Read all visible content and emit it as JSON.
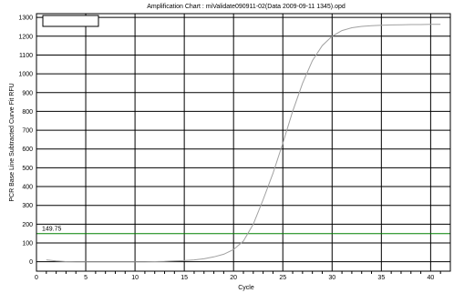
{
  "chart_data": {
    "type": "line",
    "title": "Amplification Chart : miValidate090911-02(Data 2009-09-11 1345).opd",
    "xlabel": "Cycle",
    "ylabel": "PCR Base Line Subtracted Curve Fit RFU",
    "xlim": [
      0,
      42
    ],
    "ylim": [
      -50,
      1320
    ],
    "x_ticks": [
      0,
      5,
      10,
      15,
      20,
      25,
      30,
      35,
      40
    ],
    "y_ticks": [
      0,
      100,
      200,
      300,
      400,
      500,
      600,
      700,
      800,
      900,
      1000,
      1100,
      1200,
      1300
    ],
    "grid": true,
    "legend": "top-left",
    "threshold": {
      "value": 149.75,
      "label": "149.75",
      "color": "#008000"
    },
    "series": [
      {
        "color": "#a0a0a0",
        "x": [
          1,
          2,
          3,
          4,
          5,
          6,
          7,
          8,
          9,
          10,
          11,
          12,
          13,
          14,
          15,
          16,
          17,
          18,
          19,
          20,
          21,
          22,
          23,
          24,
          25,
          26,
          27,
          28,
          29,
          30,
          31,
          32,
          33,
          34,
          35,
          36,
          37,
          38,
          39,
          40,
          41
        ],
        "y": [
          10,
          4,
          1,
          0,
          0,
          0,
          0,
          0,
          0,
          0,
          0,
          1,
          2,
          4,
          6,
          10,
          16,
          26,
          40,
          65,
          110,
          200,
          330,
          470,
          630,
          800,
          950,
          1070,
          1150,
          1200,
          1230,
          1245,
          1252,
          1256,
          1258,
          1260,
          1261,
          1262,
          1262,
          1263,
          1263
        ]
      }
    ]
  }
}
